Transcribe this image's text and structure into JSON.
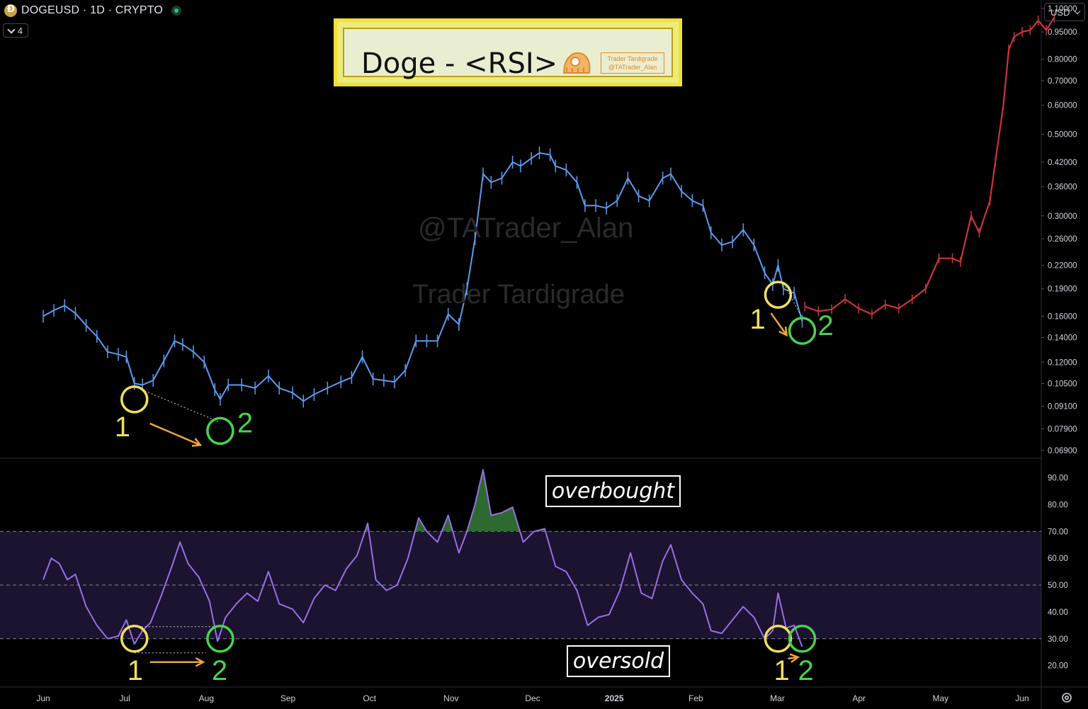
{
  "header": {
    "symbol_line": "DOGEUSD · 1D · CRYPTO",
    "collapse_count": "4",
    "currency_button": "USD"
  },
  "title": {
    "text": "Doge - <RSI>",
    "tag_line1": "Trader Tardigrade",
    "tag_line2": "@TATrader_Alan"
  },
  "watermarks": {
    "line1": "@TATrader_Alan",
    "line2": "Trader Tardigrade"
  },
  "labels": {
    "overbought": "overbought",
    "oversold": "oversold"
  },
  "markers": {
    "one": "1",
    "two": "2"
  },
  "colors": {
    "background": "#000000",
    "price_history": "#5b9cf0",
    "price_projection": "#c8363a",
    "rsi_line": "#9a6ee8",
    "rsi_band": "#1c1330",
    "circle_1": "#f1df5c",
    "circle_2": "#48d34a",
    "arrow": "#f0a53a"
  },
  "chart_data": [
    {
      "type": "line",
      "name": "price",
      "x_labels": [
        "Jun",
        "Jul",
        "Aug",
        "Sep",
        "Oct",
        "Nov",
        "Dec",
        "2025",
        "Feb",
        "Mar",
        "Apr",
        "May",
        "Jun"
      ],
      "x_range": [
        "2024-06-01",
        "2025-06-01"
      ],
      "y_scale": "log",
      "ylim": [
        0.066,
        1.16
      ],
      "y_ticks": [
        "1.10000",
        "0.95000",
        "0.80000",
        "0.70000",
        "0.60000",
        "0.50000",
        "0.42000",
        "0.36000",
        "0.30000",
        "0.26000",
        "0.22000",
        "0.19000",
        "0.16000",
        "0.14000",
        "0.12000",
        "0.10500",
        "0.09100",
        "0.07900",
        "0.06900"
      ],
      "series": [
        {
          "role": "history",
          "points": [
            [
              "2024-06-01",
              0.16
            ],
            [
              "2024-06-05",
              0.166
            ],
            [
              "2024-06-09",
              0.171
            ],
            [
              "2024-06-13",
              0.163
            ],
            [
              "2024-06-17",
              0.151
            ],
            [
              "2024-06-21",
              0.141
            ],
            [
              "2024-06-25",
              0.128
            ],
            [
              "2024-06-29",
              0.126
            ],
            [
              "2024-07-02",
              0.124
            ],
            [
              "2024-07-05",
              0.105
            ],
            [
              "2024-07-08",
              0.104
            ],
            [
              "2024-07-12",
              0.107
            ],
            [
              "2024-07-16",
              0.121
            ],
            [
              "2024-07-20",
              0.137
            ],
            [
              "2024-07-23",
              0.134
            ],
            [
              "2024-07-27",
              0.128
            ],
            [
              "2024-07-31",
              0.12
            ],
            [
              "2024-08-04",
              0.101
            ],
            [
              "2024-08-06",
              0.095
            ],
            [
              "2024-08-09",
              0.104
            ],
            [
              "2024-08-14",
              0.104
            ],
            [
              "2024-08-19",
              0.102
            ],
            [
              "2024-08-24",
              0.11
            ],
            [
              "2024-08-28",
              0.102
            ],
            [
              "2024-09-02",
              0.099
            ],
            [
              "2024-09-06",
              0.094
            ],
            [
              "2024-09-10",
              0.098
            ],
            [
              "2024-09-15",
              0.102
            ],
            [
              "2024-09-20",
              0.106
            ],
            [
              "2024-09-24",
              0.109
            ],
            [
              "2024-09-28",
              0.124
            ],
            [
              "2024-10-02",
              0.108
            ],
            [
              "2024-10-06",
              0.107
            ],
            [
              "2024-10-10",
              0.106
            ],
            [
              "2024-10-14",
              0.114
            ],
            [
              "2024-10-18",
              0.137
            ],
            [
              "2024-10-22",
              0.137
            ],
            [
              "2024-10-26",
              0.137
            ],
            [
              "2024-10-30",
              0.162
            ],
            [
              "2024-11-03",
              0.152
            ],
            [
              "2024-11-06",
              0.19
            ],
            [
              "2024-11-09",
              0.26
            ],
            [
              "2024-11-12",
              0.39
            ],
            [
              "2024-11-15",
              0.37
            ],
            [
              "2024-11-19",
              0.38
            ],
            [
              "2024-11-23",
              0.42
            ],
            [
              "2024-11-26",
              0.41
            ],
            [
              "2024-11-30",
              0.43
            ],
            [
              "2024-12-03",
              0.445
            ],
            [
              "2024-12-07",
              0.44
            ],
            [
              "2024-12-09",
              0.41
            ],
            [
              "2024-12-13",
              0.4
            ],
            [
              "2024-12-17",
              0.37
            ],
            [
              "2024-12-20",
              0.32
            ],
            [
              "2024-12-24",
              0.32
            ],
            [
              "2024-12-28",
              0.315
            ],
            [
              "2025-01-01",
              0.33
            ],
            [
              "2025-01-05",
              0.38
            ],
            [
              "2025-01-09",
              0.34
            ],
            [
              "2025-01-13",
              0.33
            ],
            [
              "2025-01-18",
              0.38
            ],
            [
              "2025-01-21",
              0.39
            ],
            [
              "2025-01-25",
              0.35
            ],
            [
              "2025-01-29",
              0.33
            ],
            [
              "2025-02-02",
              0.32
            ],
            [
              "2025-02-05",
              0.27
            ],
            [
              "2025-02-09",
              0.25
            ],
            [
              "2025-02-13",
              0.255
            ],
            [
              "2025-02-17",
              0.275
            ],
            [
              "2025-02-21",
              0.25
            ],
            [
              "2025-02-25",
              0.21
            ],
            [
              "2025-02-28",
              0.195
            ],
            [
              "2025-03-02",
              0.22
            ],
            [
              "2025-03-04",
              0.19
            ],
            [
              "2025-03-08",
              0.185
            ],
            [
              "2025-03-11",
              0.155
            ]
          ]
        },
        {
          "role": "projection",
          "points": [
            [
              "2025-03-12",
              0.17
            ],
            [
              "2025-03-17",
              0.165
            ],
            [
              "2025-03-22",
              0.167
            ],
            [
              "2025-03-27",
              0.178
            ],
            [
              "2025-04-01",
              0.168
            ],
            [
              "2025-04-06",
              0.162
            ],
            [
              "2025-04-11",
              0.172
            ],
            [
              "2025-04-16",
              0.168
            ],
            [
              "2025-04-21",
              0.178
            ],
            [
              "2025-04-26",
              0.19
            ],
            [
              "2025-05-01",
              0.23
            ],
            [
              "2025-05-06",
              0.23
            ],
            [
              "2025-05-09",
              0.225
            ],
            [
              "2025-05-13",
              0.3
            ],
            [
              "2025-05-16",
              0.27
            ],
            [
              "2025-05-20",
              0.33
            ],
            [
              "2025-05-22",
              0.42
            ],
            [
              "2025-05-25",
              0.6
            ],
            [
              "2025-05-27",
              0.85
            ],
            [
              "2025-05-29",
              0.92
            ],
            [
              "2025-06-01",
              0.95
            ],
            [
              "2025-06-04",
              0.96
            ],
            [
              "2025-06-07",
              1.02
            ],
            [
              "2025-06-10",
              0.96
            ],
            [
              "2025-06-13",
              1.04
            ]
          ]
        }
      ],
      "annotations": [
        {
          "label": "1",
          "date": "2024-07-05",
          "value": 0.095
        },
        {
          "label": "2",
          "date": "2024-08-06",
          "value": 0.078
        },
        {
          "label": "1",
          "date": "2025-03-02",
          "value": 0.183
        },
        {
          "label": "2",
          "date": "2025-03-11",
          "value": 0.146
        }
      ]
    },
    {
      "type": "line",
      "name": "RSI",
      "x_range": [
        "2024-06-01",
        "2025-06-01"
      ],
      "ylim": [
        12,
        97
      ],
      "y_ticks": [
        "90.00",
        "80.00",
        "70.00",
        "60.00",
        "50.00",
        "40.00",
        "30.00",
        "20.00"
      ],
      "levels": {
        "upper": 70,
        "middle": 50,
        "lower": 30
      },
      "points": [
        [
          "2024-06-01",
          52
        ],
        [
          "2024-06-04",
          60
        ],
        [
          "2024-06-07",
          58
        ],
        [
          "2024-06-10",
          52
        ],
        [
          "2024-06-13",
          54
        ],
        [
          "2024-06-17",
          42
        ],
        [
          "2024-06-21",
          35
        ],
        [
          "2024-06-25",
          30
        ],
        [
          "2024-06-29",
          31
        ],
        [
          "2024-07-02",
          37
        ],
        [
          "2024-07-05",
          28
        ],
        [
          "2024-07-08",
          33
        ],
        [
          "2024-07-11",
          36
        ],
        [
          "2024-07-15",
          46
        ],
        [
          "2024-07-19",
          57
        ],
        [
          "2024-07-22",
          66
        ],
        [
          "2024-07-25",
          58
        ],
        [
          "2024-07-29",
          53
        ],
        [
          "2024-08-02",
          44
        ],
        [
          "2024-08-05",
          29
        ],
        [
          "2024-08-08",
          38
        ],
        [
          "2024-08-12",
          43
        ],
        [
          "2024-08-16",
          47
        ],
        [
          "2024-08-20",
          44
        ],
        [
          "2024-08-24",
          55
        ],
        [
          "2024-08-28",
          43
        ],
        [
          "2024-09-02",
          41
        ],
        [
          "2024-09-06",
          36
        ],
        [
          "2024-09-10",
          45
        ],
        [
          "2024-09-14",
          50
        ],
        [
          "2024-09-18",
          48
        ],
        [
          "2024-09-22",
          56
        ],
        [
          "2024-09-26",
          61
        ],
        [
          "2024-09-30",
          73
        ],
        [
          "2024-10-03",
          52
        ],
        [
          "2024-10-07",
          48
        ],
        [
          "2024-10-11",
          50
        ],
        [
          "2024-10-15",
          60
        ],
        [
          "2024-10-19",
          75
        ],
        [
          "2024-10-22",
          70
        ],
        [
          "2024-10-26",
          66
        ],
        [
          "2024-10-30",
          76
        ],
        [
          "2024-11-03",
          62
        ],
        [
          "2024-11-06",
          70
        ],
        [
          "2024-11-09",
          80
        ],
        [
          "2024-11-12",
          93
        ],
        [
          "2024-11-15",
          76
        ],
        [
          "2024-11-19",
          77
        ],
        [
          "2024-11-23",
          79
        ],
        [
          "2024-11-27",
          66
        ],
        [
          "2024-12-01",
          70
        ],
        [
          "2024-12-05",
          71
        ],
        [
          "2024-12-09",
          57
        ],
        [
          "2024-12-13",
          55
        ],
        [
          "2024-12-17",
          48
        ],
        [
          "2024-12-21",
          35
        ],
        [
          "2024-12-25",
          38
        ],
        [
          "2024-12-29",
          39
        ],
        [
          "2025-01-02",
          48
        ],
        [
          "2025-01-06",
          62
        ],
        [
          "2025-01-10",
          47
        ],
        [
          "2025-01-14",
          45
        ],
        [
          "2025-01-18",
          59
        ],
        [
          "2025-01-21",
          65
        ],
        [
          "2025-01-25",
          52
        ],
        [
          "2025-01-29",
          47
        ],
        [
          "2025-02-02",
          43
        ],
        [
          "2025-02-05",
          33
        ],
        [
          "2025-02-09",
          32
        ],
        [
          "2025-02-13",
          37
        ],
        [
          "2025-02-17",
          42
        ],
        [
          "2025-02-21",
          38
        ],
        [
          "2025-02-25",
          30
        ],
        [
          "2025-02-28",
          33
        ],
        [
          "2025-03-02",
          47
        ],
        [
          "2025-03-05",
          34
        ],
        [
          "2025-03-08",
          35
        ],
        [
          "2025-03-11",
          27
        ]
      ],
      "annotations": [
        {
          "label": "1",
          "date": "2024-07-05",
          "value": 30
        },
        {
          "label": "2",
          "date": "2024-08-06",
          "value": 30
        },
        {
          "label": "1",
          "date": "2025-03-02",
          "value": 30
        },
        {
          "label": "2",
          "date": "2025-03-11",
          "value": 30
        }
      ]
    }
  ]
}
